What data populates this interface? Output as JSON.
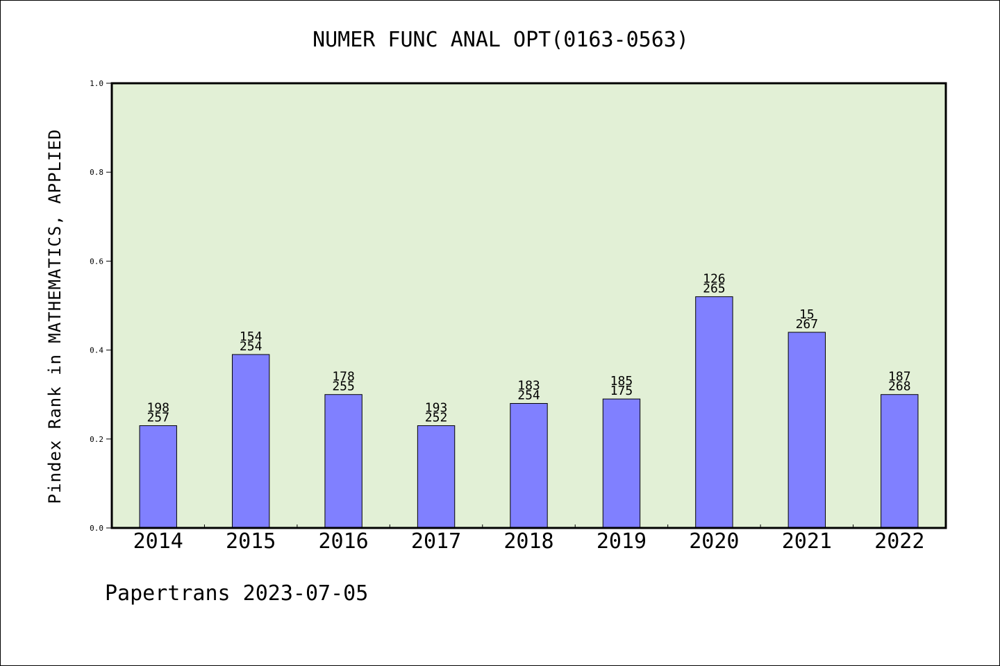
{
  "chart_data": {
    "type": "bar",
    "title": "NUMER FUNC ANAL OPT(0163-0563)",
    "ylabel": "Pindex Rank in MATHEMATICS, APPLIED",
    "xlabel": "",
    "categories": [
      "2014",
      "2015",
      "2016",
      "2017",
      "2018",
      "2019",
      "2020",
      "2021",
      "2022"
    ],
    "values": [
      0.23,
      0.39,
      0.3,
      0.23,
      0.28,
      0.29,
      0.52,
      0.44,
      0.3
    ],
    "bar_labels_top": [
      "198",
      "154",
      "178",
      "193",
      "183",
      "185",
      "126",
      "15",
      "187"
    ],
    "bar_labels_bottom": [
      "257",
      "254",
      "255",
      "252",
      "254",
      "175",
      "265",
      "267",
      "268"
    ],
    "ylim": [
      0.0,
      1.0
    ],
    "yticks": [
      "0.0",
      "0.2",
      "0.4",
      "0.6",
      "0.8",
      "1.0"
    ],
    "grid": false,
    "colors": {
      "plot_background": "#e2f0d6",
      "bar_fill": "#8080ff",
      "bar_stroke": "#000000"
    }
  },
  "footer": {
    "text": "Papertrans 2023-07-05"
  }
}
